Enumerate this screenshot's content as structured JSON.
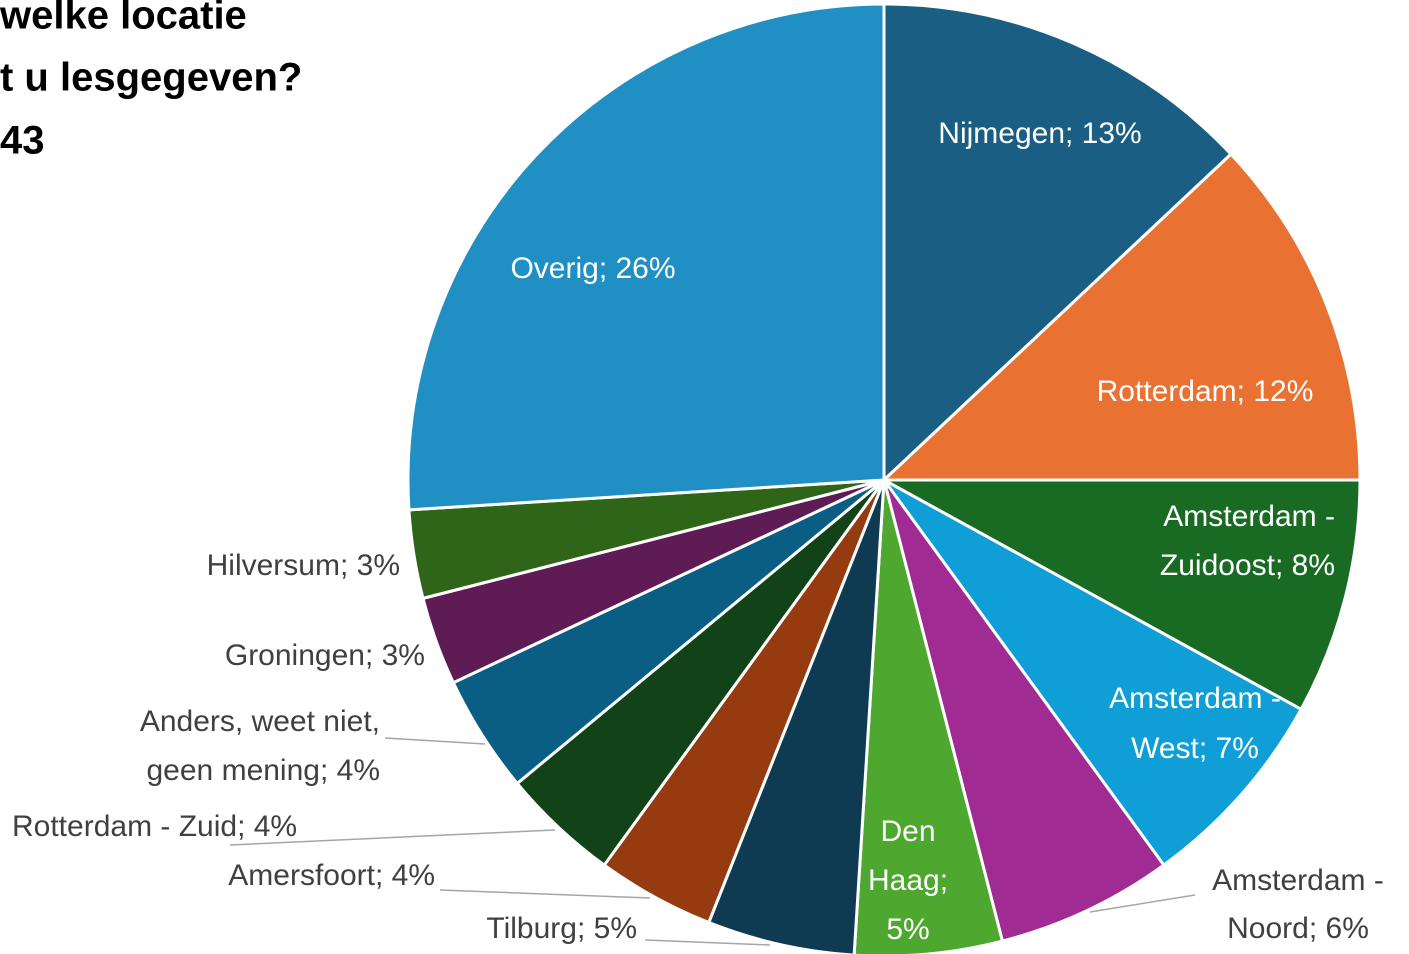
{
  "chart_data": {
    "type": "pie",
    "title": [
      "welke locatie",
      "t u lesgegeven?",
      "43"
    ],
    "labels": [
      [
        "Nijmegen; 13%"
      ],
      [
        "Rotterdam; 12%"
      ],
      [
        "Amsterdam -",
        "Zuidoost; 8%"
      ],
      [
        "Amsterdam -",
        "West; 7%"
      ],
      [
        "Amsterdam -",
        "Noord; 6%"
      ],
      [
        "Den",
        "Haag;",
        "5%"
      ],
      [
        "Tilburg; 5%"
      ],
      [
        "Amersfoort; 4%"
      ],
      [
        "Rotterdam - Zuid; 4%"
      ],
      [
        "Anders, weet niet,",
        "geen mening; 4%"
      ],
      [
        "Groningen; 3%"
      ],
      [
        "Hilversum; 3%"
      ],
      [
        "Overig; 26%"
      ]
    ],
    "values": [
      13,
      12,
      8,
      7,
      6,
      5,
      5,
      4,
      4,
      4,
      3,
      3,
      26
    ],
    "colors": [
      "#1a5e84",
      "#e97132",
      "#196b24",
      "#0f9ed5",
      "#a02b93",
      "#4ea72e",
      "#0e3a52",
      "#953b0f",
      "#124218",
      "#0b5e83",
      "#5f1b53",
      "#2e6518",
      "#1f8fc4"
    ]
  }
}
